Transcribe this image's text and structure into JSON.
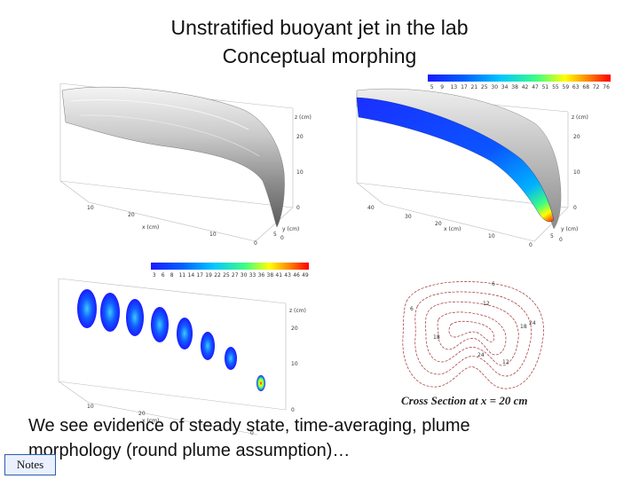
{
  "slide": {
    "title_line1": "Unstratified buoyant jet in the lab",
    "title_line2": "Conceptual morphing",
    "body_text": "We see evidence of steady state, time-averaging, plume morphology (round plume assumption)…",
    "notes_label": "Notes"
  },
  "panel_top_left": {
    "z_label": "z (cm)",
    "x_label": "x (cm)",
    "y_label": "y (cm)",
    "z_ticks": [
      "20",
      "10",
      "0"
    ],
    "x_ticks": [
      "10",
      "20",
      "10",
      "0"
    ],
    "y_ticks": [
      "5",
      "0"
    ]
  },
  "panel_top_right": {
    "colorbar_ticks": [
      "5",
      "9",
      "13",
      "17",
      "21",
      "25",
      "30",
      "34",
      "38",
      "42",
      "47",
      "51",
      "55",
      "59",
      "63",
      "68",
      "72",
      "76"
    ],
    "z_label": "z (cm)",
    "x_label": "x (cm)",
    "y_label": "y (cm)",
    "z_ticks": [
      "20",
      "10",
      "0"
    ],
    "x_ticks": [
      "40",
      "30",
      "20",
      "10",
      "0"
    ],
    "y_ticks": [
      "5",
      "0"
    ]
  },
  "panel_bottom_left": {
    "colorbar_ticks": [
      "3",
      "6",
      "8",
      "11",
      "14",
      "17",
      "19",
      "22",
      "25",
      "27",
      "30",
      "33",
      "36",
      "38",
      "41",
      "43",
      "46",
      "49"
    ],
    "z_label": "z (cm)",
    "x_label": "x (cm)",
    "z_ticks": [
      "20",
      "10",
      "0"
    ],
    "x_ticks": [
      "10",
      "20",
      "0"
    ]
  },
  "cross_section": {
    "caption": "Cross Section at x = 20 cm",
    "contour_labels": [
      "6",
      "12",
      "18",
      "24",
      "6",
      "18",
      "24",
      "12"
    ]
  },
  "colors": {
    "jet_colormap": [
      "#1a1aff",
      "#0060ff",
      "#00c8ff",
      "#40ff80",
      "#ffff00",
      "#ff8000",
      "#ff0000"
    ],
    "contour_color": "#a03030",
    "notes_border": "#2a5fb0"
  }
}
